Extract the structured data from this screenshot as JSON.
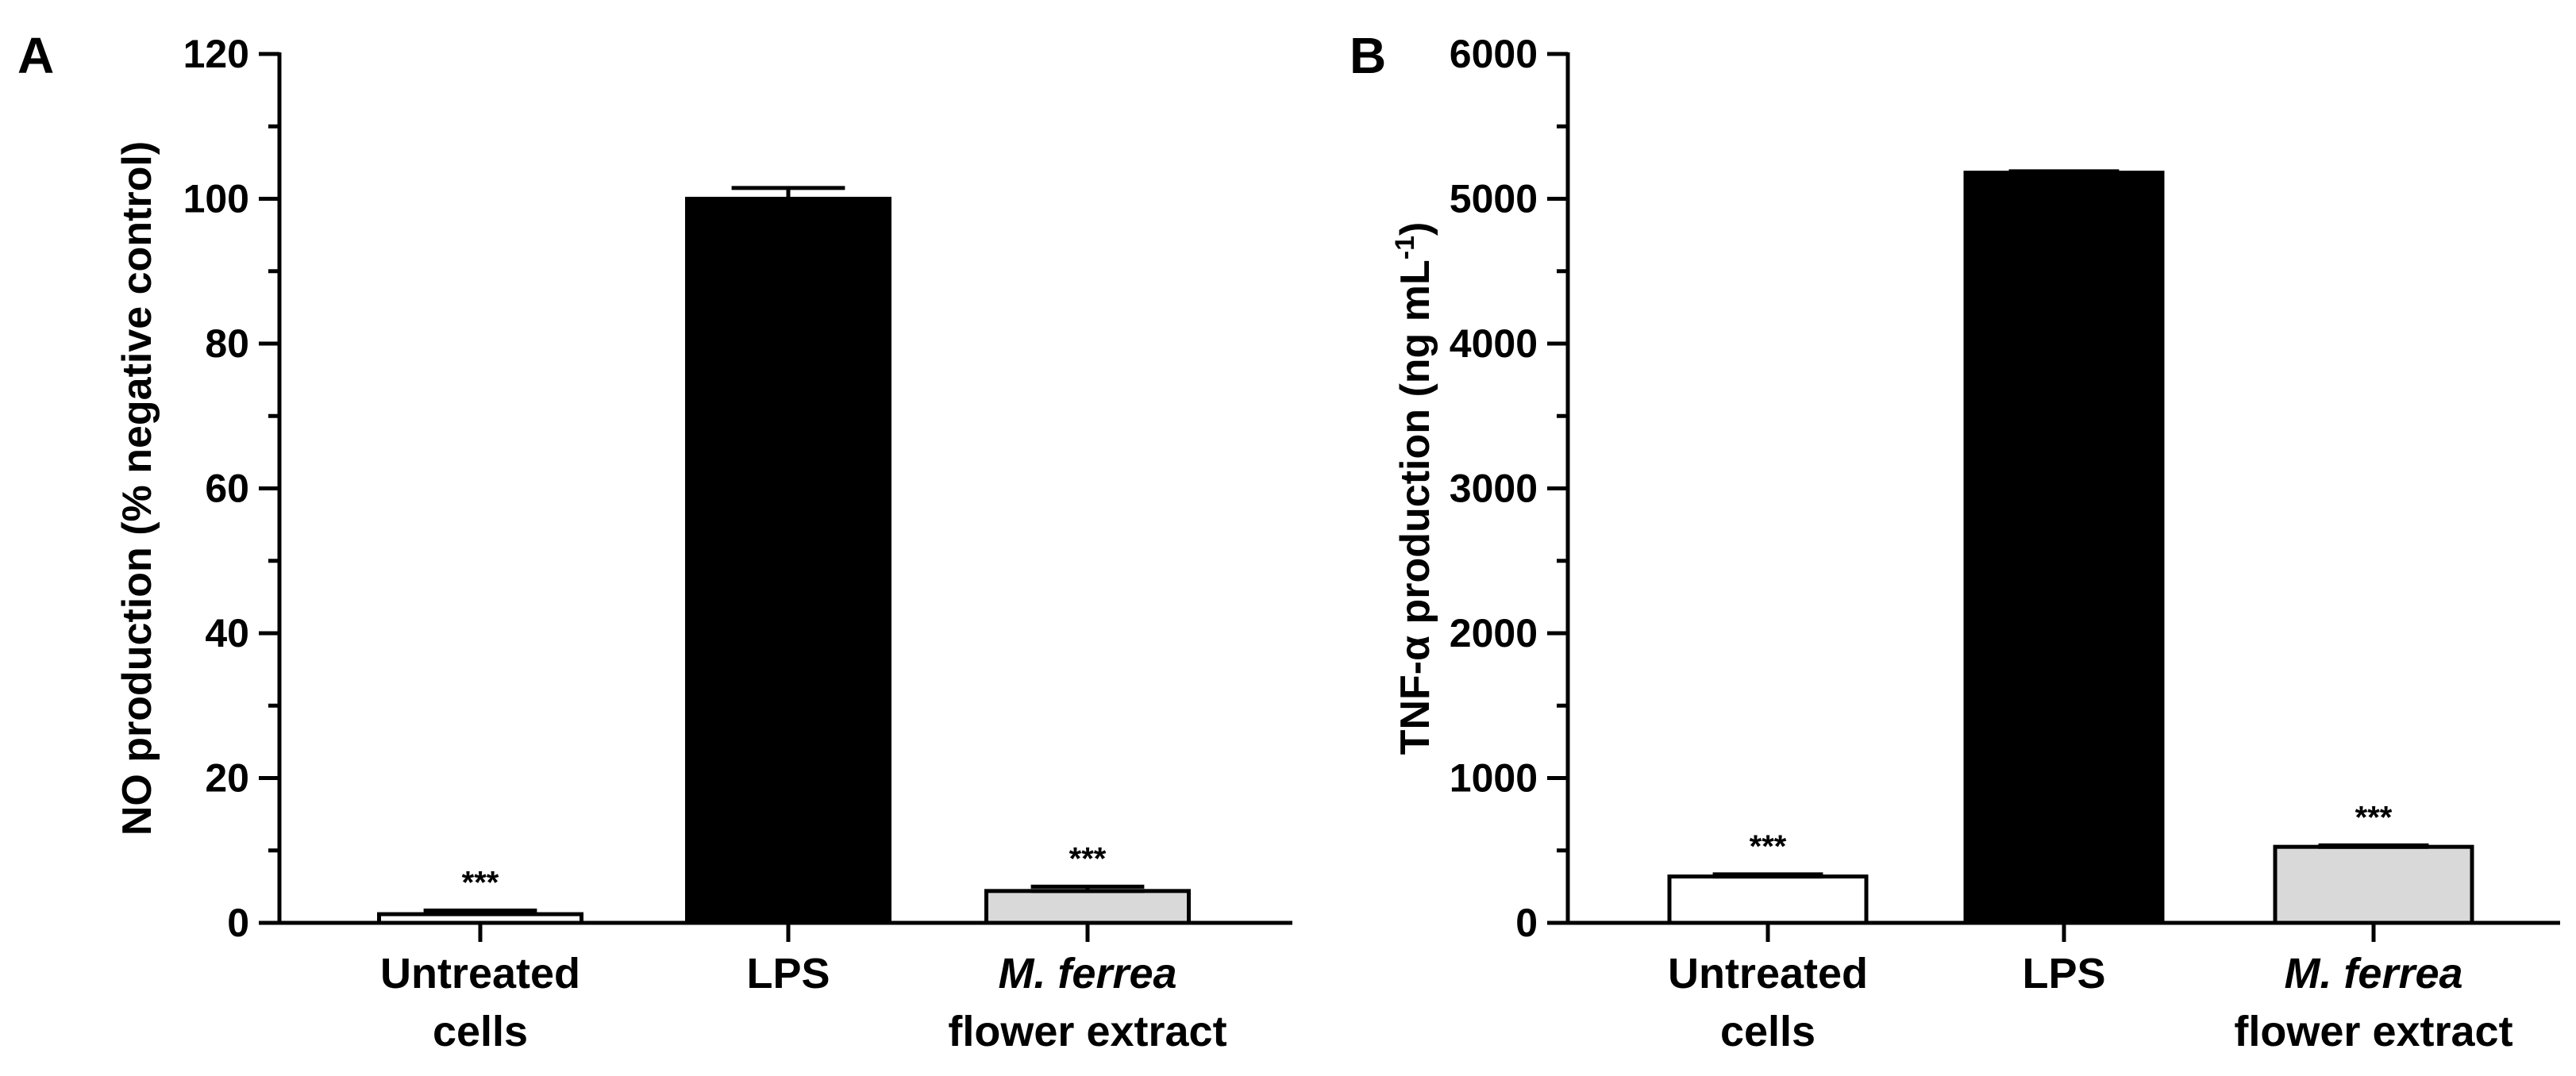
{
  "chart_data": [
    {
      "type": "bar",
      "panel": "A",
      "categories": [
        {
          "line1": "Untreated",
          "line2": "cells",
          "italic_line1": false
        },
        {
          "line1": "LPS",
          "line2": "",
          "italic_line1": false
        },
        {
          "line1": "M. ferrea",
          "line2": "flower extract",
          "italic_line1": true
        }
      ],
      "values": [
        1.2,
        100,
        4.4
      ],
      "errors": [
        0.5,
        1.5,
        0.6
      ],
      "significance": [
        "***",
        "",
        "***"
      ],
      "fills": [
        "#ffffff",
        "#000000",
        "#d9d9d9"
      ],
      "ylabel": "NO production  (% negative control)",
      "ylim": [
        0,
        120
      ],
      "yticks": [
        0,
        20,
        40,
        60,
        80,
        100,
        120
      ],
      "yticklabels": [
        "0",
        "20",
        "40",
        "60",
        "80",
        "100",
        "120"
      ],
      "minor_per_major": 2,
      "grid": false
    },
    {
      "type": "bar",
      "panel": "B",
      "categories": [
        {
          "line1": "Untreated",
          "line2": "cells",
          "italic_line1": false
        },
        {
          "line1": "LPS",
          "line2": "",
          "italic_line1": false
        },
        {
          "line1": "M. ferrea",
          "line2": "flower extract",
          "italic_line1": true
        }
      ],
      "values": [
        320,
        5180,
        525
      ],
      "errors": [
        15,
        10,
        10
      ],
      "significance": [
        "***",
        "",
        "***"
      ],
      "fills": [
        "#ffffff",
        "#000000",
        "#d9d9d9"
      ],
      "ylabel_main": "TNF-α production  (ng mL",
      "ylabel_sup": "-1",
      "ylabel_end": ")",
      "ylim": [
        0,
        6000
      ],
      "yticks": [
        0,
        1000,
        2000,
        3000,
        4000,
        5000,
        6000
      ],
      "yticklabels": [
        "0",
        "1000",
        "2000",
        "3000",
        "4000",
        "5000",
        "6000"
      ],
      "minor_per_major": 2,
      "grid": false
    }
  ]
}
